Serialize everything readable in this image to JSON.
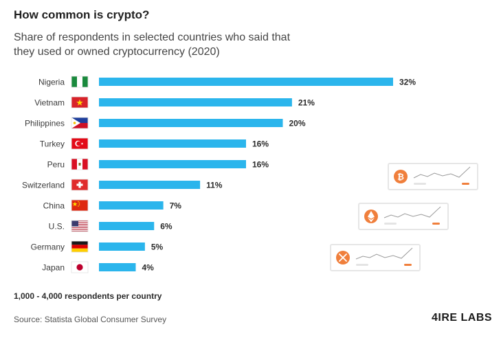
{
  "header": {
    "title": "How common is crypto?",
    "subtitle": "Share of respondents in selected countries who said that they used or owned cryptocurrency (2020)"
  },
  "footer": {
    "note": "1,000 - 4,000 respondents per country",
    "source": "Source: Statista Global Consumer Survey",
    "brand": "4IRE LABS"
  },
  "colors": {
    "bar": "#2bb5ec",
    "accent": "#f07f3c"
  },
  "chart_data": {
    "type": "bar",
    "orientation": "horizontal",
    "title": "How common is crypto?",
    "categories": [
      "Nigeria",
      "Vietnam",
      "Philippines",
      "Turkey",
      "Peru",
      "Switzerland",
      "China",
      "U.S.",
      "Germany",
      "Japan"
    ],
    "values": [
      32,
      21,
      20,
      16,
      16,
      11,
      7,
      6,
      5,
      4
    ],
    "value_labels": [
      "32%",
      "21%",
      "20%",
      "16%",
      "16%",
      "11%",
      "7%",
      "6%",
      "5%",
      "4%"
    ],
    "unit": "%",
    "xlim": [
      0,
      32
    ],
    "grid": false,
    "legend": "none"
  },
  "decor_cards": [
    {
      "icon": "bitcoin-icon"
    },
    {
      "icon": "ethereum-icon"
    },
    {
      "icon": "xrp-icon"
    }
  ]
}
